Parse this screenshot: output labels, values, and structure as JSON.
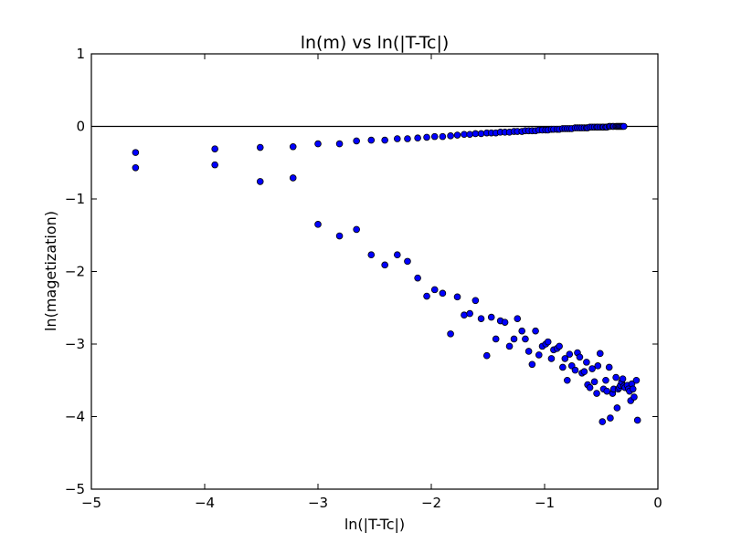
{
  "chart_data": {
    "type": "scatter",
    "title": "ln(m) vs ln(|T-Tc|)",
    "xlabel": "ln(|T-Tc|)",
    "ylabel": "ln(magetization)",
    "xlim": [
      -5,
      0
    ],
    "ylim": [
      -5,
      1
    ],
    "xticks": [
      -5,
      -4,
      -3,
      -2,
      -1,
      0
    ],
    "yticks": [
      -5,
      -4,
      -3,
      -2,
      -1,
      0,
      1
    ],
    "xtick_labels": [
      "−5",
      "−4",
      "−3",
      "−2",
      "−1",
      "0"
    ],
    "ytick_labels": [
      "−5",
      "−4",
      "−3",
      "−2",
      "−1",
      "0",
      "1"
    ],
    "hline_y": 0,
    "grid": false,
    "marker_color": "#0000ff",
    "marker_edge": "#000000",
    "series": [
      {
        "values": [
          [
            -4.61,
            -0.36
          ],
          [
            -3.91,
            -0.31
          ],
          [
            -3.51,
            -0.29
          ],
          [
            -3.22,
            -0.28
          ],
          [
            -3.0,
            -0.24
          ],
          [
            -2.81,
            -0.24
          ],
          [
            -2.66,
            -0.2
          ],
          [
            -2.53,
            -0.19
          ],
          [
            -2.41,
            -0.19
          ],
          [
            -2.3,
            -0.17
          ],
          [
            -2.21,
            -0.17
          ],
          [
            -2.12,
            -0.16
          ],
          [
            -2.04,
            -0.15
          ],
          [
            -1.97,
            -0.14
          ],
          [
            -1.9,
            -0.14
          ],
          [
            -1.83,
            -0.13
          ],
          [
            -1.77,
            -0.12
          ],
          [
            -1.71,
            -0.11
          ],
          [
            -1.66,
            -0.11
          ],
          [
            -1.61,
            -0.1
          ],
          [
            -1.56,
            -0.1
          ],
          [
            -1.51,
            -0.09
          ],
          [
            -1.47,
            -0.09
          ],
          [
            -1.43,
            -0.09
          ],
          [
            -1.39,
            -0.08
          ],
          [
            -1.35,
            -0.08
          ],
          [
            -1.31,
            -0.08
          ],
          [
            -1.27,
            -0.07
          ],
          [
            -1.24,
            -0.07
          ],
          [
            -1.2,
            -0.07
          ],
          [
            -1.17,
            -0.06
          ],
          [
            -1.14,
            -0.06
          ],
          [
            -1.11,
            -0.06
          ],
          [
            -1.08,
            -0.06
          ],
          [
            -1.05,
            -0.05
          ],
          [
            -1.02,
            -0.05
          ],
          [
            -0.99,
            -0.05
          ],
          [
            -0.97,
            -0.05
          ],
          [
            -0.94,
            -0.04
          ],
          [
            -0.92,
            -0.04
          ],
          [
            -0.89,
            -0.04
          ],
          [
            -0.87,
            -0.04
          ],
          [
            -0.84,
            -0.03
          ],
          [
            -0.82,
            -0.03
          ],
          [
            -0.8,
            -0.03
          ],
          [
            -0.78,
            -0.03
          ],
          [
            -0.76,
            -0.03
          ],
          [
            -0.73,
            -0.02
          ],
          [
            -0.71,
            -0.02
          ],
          [
            -0.69,
            -0.02
          ],
          [
            -0.67,
            -0.02
          ],
          [
            -0.65,
            -0.02
          ],
          [
            -0.63,
            -0.02
          ],
          [
            -0.62,
            -0.02
          ],
          [
            -0.6,
            -0.01
          ],
          [
            -0.58,
            -0.01
          ],
          [
            -0.56,
            -0.01
          ],
          [
            -0.54,
            -0.01
          ],
          [
            -0.53,
            -0.01
          ],
          [
            -0.51,
            -0.01
          ],
          [
            -0.49,
            -0.01
          ],
          [
            -0.48,
            -0.01
          ],
          [
            -0.46,
            -0.01
          ],
          [
            -0.45,
            -0.01
          ],
          [
            -0.43,
            0.0
          ],
          [
            -0.42,
            0.0
          ],
          [
            -0.4,
            0.0
          ],
          [
            -0.39,
            0.0
          ],
          [
            -0.37,
            0.0
          ],
          [
            -0.36,
            0.0
          ],
          [
            -0.35,
            0.0
          ],
          [
            -0.34,
            0.0
          ],
          [
            -0.33,
            0.0
          ],
          [
            -0.32,
            0.0
          ],
          [
            -0.31,
            0.0
          ],
          [
            -0.3,
            0.0
          ]
        ]
      },
      {
        "values": [
          [
            -4.61,
            -0.57
          ],
          [
            -3.91,
            -0.53
          ],
          [
            -3.51,
            -0.76
          ],
          [
            -3.22,
            -0.71
          ],
          [
            -3.0,
            -1.35
          ],
          [
            -2.81,
            -1.51
          ],
          [
            -2.66,
            -1.42
          ],
          [
            -2.53,
            -1.77
          ],
          [
            -2.41,
            -1.91
          ],
          [
            -2.3,
            -1.77
          ],
          [
            -2.21,
            -1.86
          ],
          [
            -2.12,
            -2.09
          ],
          [
            -2.04,
            -2.34
          ],
          [
            -1.97,
            -2.25
          ],
          [
            -1.9,
            -2.3
          ],
          [
            -1.83,
            -2.86
          ],
          [
            -1.77,
            -2.35
          ],
          [
            -1.71,
            -2.6
          ],
          [
            -1.66,
            -2.58
          ],
          [
            -1.61,
            -2.4
          ],
          [
            -1.56,
            -2.65
          ],
          [
            -1.51,
            -3.16
          ],
          [
            -1.47,
            -2.63
          ],
          [
            -1.43,
            -2.93
          ],
          [
            -1.39,
            -2.68
          ],
          [
            -1.35,
            -2.7
          ],
          [
            -1.31,
            -3.03
          ],
          [
            -1.27,
            -2.93
          ],
          [
            -1.24,
            -2.65
          ],
          [
            -1.2,
            -2.82
          ],
          [
            -1.17,
            -2.93
          ],
          [
            -1.14,
            -3.1
          ],
          [
            -1.11,
            -3.28
          ],
          [
            -1.08,
            -2.82
          ],
          [
            -1.05,
            -3.15
          ],
          [
            -1.02,
            -3.03
          ],
          [
            -0.99,
            -3.0
          ],
          [
            -0.97,
            -2.97
          ],
          [
            -0.94,
            -3.2
          ],
          [
            -0.92,
            -3.08
          ],
          [
            -0.89,
            -3.06
          ],
          [
            -0.87,
            -3.03
          ],
          [
            -0.84,
            -3.32
          ],
          [
            -0.82,
            -3.2
          ],
          [
            -0.8,
            -3.5
          ],
          [
            -0.78,
            -3.14
          ],
          [
            -0.76,
            -3.3
          ],
          [
            -0.73,
            -3.36
          ],
          [
            -0.71,
            -3.12
          ],
          [
            -0.69,
            -3.18
          ],
          [
            -0.67,
            -3.4
          ],
          [
            -0.65,
            -3.38
          ],
          [
            -0.63,
            -3.25
          ],
          [
            -0.62,
            -3.56
          ],
          [
            -0.6,
            -3.6
          ],
          [
            -0.58,
            -3.34
          ],
          [
            -0.56,
            -3.52
          ],
          [
            -0.54,
            -3.68
          ],
          [
            -0.53,
            -3.3
          ],
          [
            -0.51,
            -3.13
          ],
          [
            -0.49,
            -4.07
          ],
          [
            -0.48,
            -3.62
          ],
          [
            -0.46,
            -3.5
          ],
          [
            -0.45,
            -3.65
          ],
          [
            -0.43,
            -3.32
          ],
          [
            -0.42,
            -4.02
          ],
          [
            -0.4,
            -3.68
          ],
          [
            -0.39,
            -3.62
          ],
          [
            -0.37,
            -3.46
          ],
          [
            -0.36,
            -3.88
          ],
          [
            -0.35,
            -3.62
          ],
          [
            -0.34,
            -3.6
          ],
          [
            -0.33,
            -3.57
          ],
          [
            -0.32,
            -3.52
          ],
          [
            -0.31,
            -3.48
          ],
          [
            -0.3,
            -3.58
          ],
          [
            -0.29,
            -3.6
          ],
          [
            -0.27,
            -3.57
          ],
          [
            -0.26,
            -3.62
          ],
          [
            -0.25,
            -3.65
          ],
          [
            -0.24,
            -3.78
          ],
          [
            -0.23,
            -3.55
          ],
          [
            -0.22,
            -3.62
          ],
          [
            -0.21,
            -3.73
          ],
          [
            -0.19,
            -3.5
          ],
          [
            -0.18,
            -4.05
          ]
        ]
      }
    ]
  }
}
